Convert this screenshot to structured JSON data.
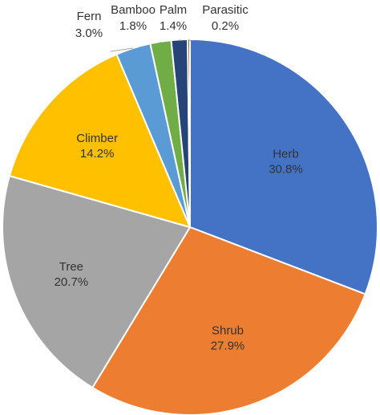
{
  "chart_data": {
    "type": "pie",
    "title": "",
    "start_angle_deg": 0,
    "direction": "clockwise",
    "slice_border_color": "#ffffff",
    "slices": [
      {
        "label": "Herb",
        "value": 30.8,
        "value_label": "30.8%",
        "color": "#4472C4",
        "label_style": "inside"
      },
      {
        "label": "Shrub",
        "value": 27.9,
        "value_label": "27.9%",
        "color": "#ED7D31",
        "label_style": "inside"
      },
      {
        "label": "Tree",
        "value": 20.7,
        "value_label": "20.7%",
        "color": "#A5A5A5",
        "label_style": "inside"
      },
      {
        "label": "Climber",
        "value": 14.2,
        "value_label": "14.2%",
        "color": "#FFC000",
        "label_style": "inside"
      },
      {
        "label": "Fern",
        "value": 3.0,
        "value_label": "3.0%",
        "color": "#5B9BD5",
        "label_style": "outside"
      },
      {
        "label": "Bamboo",
        "value": 1.8,
        "value_label": "1.8%",
        "color": "#70AD47",
        "label_style": "outside"
      },
      {
        "label": "Palm",
        "value": 1.4,
        "value_label": "1.4%",
        "color": "#264478",
        "label_style": "outside"
      },
      {
        "label": "Parasitic",
        "value": 0.2,
        "value_label": "0.2%",
        "color": "#9E480E",
        "label_style": "outside"
      }
    ]
  }
}
